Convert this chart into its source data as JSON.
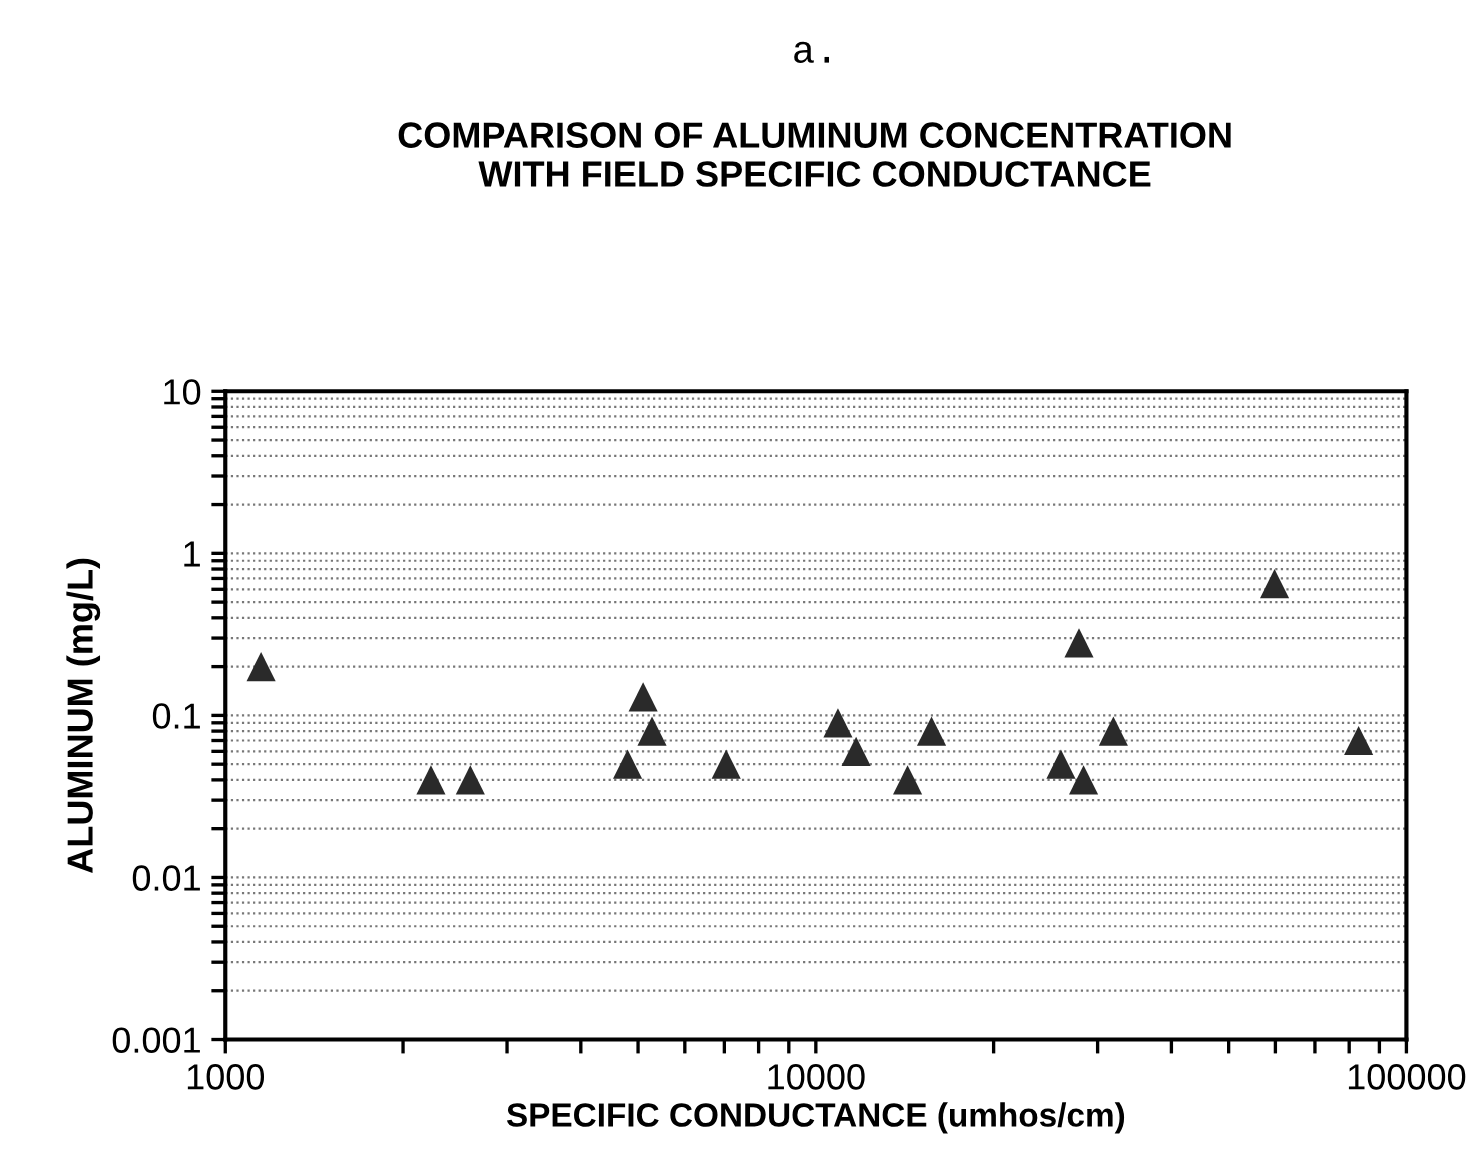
{
  "chart_data": {
    "type": "scatter",
    "title": "a.",
    "subtitle": "COMPARISON OF ALUMINUM CONCENTRATION\nWITH FIELD SPECIFIC CONDUCTANCE",
    "xlabel": "SPECIFIC CONDUCTANCE (umhos/cm)",
    "ylabel": "ALUMINUM (mg/L)",
    "log": "xy",
    "marker": "triangle",
    "grid": "y",
    "x": [
      1150,
      2230,
      2600,
      4800,
      5100,
      5280,
      7050,
      10900,
      11700,
      14300,
      15700,
      26000,
      27900,
      28400,
      31900,
      59800,
      83000
    ],
    "series": [
      {
        "color": "#2a2a2a",
        "values": [
          0.2,
          0.04,
          0.04,
          0.05,
          0.13,
          0.08,
          0.05,
          0.09,
          0.06,
          0.04,
          0.08,
          0.05,
          0.28,
          0.04,
          0.08,
          0.65,
          0.07
        ]
      }
    ],
    "xlim": [
      1000,
      100000
    ],
    "ylim": [
      0.001,
      10
    ],
    "xticks": [
      1000,
      {
        "value": 2000,
        "label": null
      },
      {
        "value": 3000,
        "label": null
      },
      {
        "value": 4000,
        "label": null
      },
      {
        "value": 5000,
        "label": null
      },
      {
        "value": 6000,
        "label": null
      },
      {
        "value": 7000,
        "label": null
      },
      {
        "value": 8000,
        "label": null
      },
      {
        "value": 9000,
        "label": null
      },
      10000,
      {
        "value": 20000,
        "label": null
      },
      {
        "value": 30000,
        "label": null
      },
      {
        "value": 40000,
        "label": null
      },
      {
        "value": 50000,
        "label": null
      },
      {
        "value": 60000,
        "label": null
      },
      {
        "value": 70000,
        "label": null
      },
      {
        "value": 80000,
        "label": null
      },
      {
        "value": 90000,
        "label": null
      },
      100000
    ],
    "yticks": [
      0.001,
      {
        "value": 0.002,
        "label": null
      },
      {
        "value": 0.003,
        "label": null
      },
      {
        "value": 0.004,
        "label": null
      },
      {
        "value": 0.005,
        "label": null
      },
      {
        "value": 0.006,
        "label": null
      },
      {
        "value": 0.007,
        "label": null
      },
      {
        "value": 0.008,
        "label": null
      },
      {
        "value": 0.009,
        "label": null
      },
      0.01,
      {
        "value": 0.02,
        "label": null
      },
      {
        "value": 0.03,
        "label": null
      },
      {
        "value": 0.04,
        "label": null
      },
      {
        "value": 0.05,
        "label": null
      },
      {
        "value": 0.06,
        "label": null
      },
      {
        "value": 0.07,
        "label": null
      },
      {
        "value": 0.08,
        "label": null
      },
      {
        "value": 0.09,
        "label": null
      },
      0.1,
      {
        "value": 0.2,
        "label": null
      },
      {
        "value": 0.3,
        "label": null
      },
      {
        "value": 0.4,
        "label": null
      },
      {
        "value": 0.5,
        "label": null
      },
      {
        "value": 0.6,
        "label": null
      },
      {
        "value": 0.7,
        "label": null
      },
      {
        "value": 0.8,
        "label": null
      },
      {
        "value": 0.9,
        "label": null
      },
      1,
      {
        "value": 2,
        "label": null
      },
      {
        "value": 3,
        "label": null
      },
      {
        "value": 4,
        "label": null
      },
      {
        "value": 5,
        "label": null
      },
      {
        "value": 6,
        "label": null
      },
      {
        "value": 7,
        "label": null
      },
      {
        "value": 8,
        "label": null
      },
      {
        "value": 9,
        "label": null
      },
      10
    ]
  }
}
